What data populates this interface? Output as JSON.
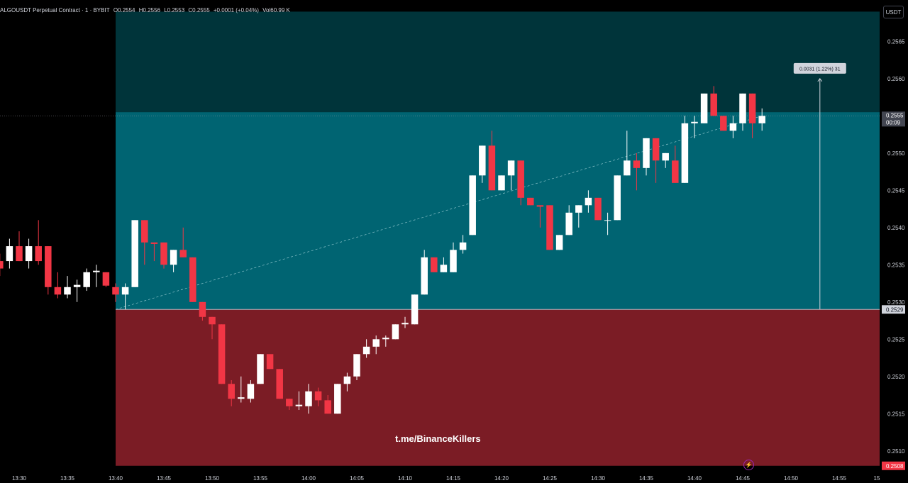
{
  "header": {
    "symbol": "ALGOUSDT Perpetual Contract · 1 · BYBIT",
    "open": "O0.2554",
    "high": "H0.2556",
    "low": "L0.2553",
    "close": "C0.2555",
    "change": "+0.0001 (+0.04%)",
    "volume": "Vol60.99 K"
  },
  "currency": "USDT",
  "watermark": "t.me/BinanceKillers",
  "measure_label": "0.0031 (1.22%) 31",
  "colors": {
    "up": "#ffffff",
    "down": "#f23645",
    "profit_zone": "#006472",
    "profit_zone_upper": "#00343a",
    "stop_zone": "#7b1c25",
    "entry_line": "#b2b5be",
    "text": "#d1d4dc"
  },
  "chart_data": {
    "type": "candlestick",
    "title": "",
    "ylim": [
      0.25075,
      0.25698
    ],
    "y_ticks": [
      "0.2565",
      "0.2560",
      "0.2550",
      "0.2545",
      "0.2540",
      "0.2535",
      "0.2530",
      "0.2525",
      "0.2520",
      "0.2515",
      "0.2510"
    ],
    "x_ticks": [
      "13:30",
      "13:35",
      "13:40",
      "13:45",
      "13:50",
      "13:55",
      "14:00",
      "14:05",
      "14:10",
      "14:15",
      "14:20",
      "14:25",
      "14:30",
      "14:35",
      "14:40",
      "14:45",
      "14:50",
      "14:55",
      "15"
    ],
    "x_range": [
      "13:28",
      "15:00"
    ],
    "price_labels": {
      "current_price": "0.2555",
      "countdown": "00:09",
      "entry": "0.2529",
      "stop": "0.2508"
    },
    "position": {
      "side": "long",
      "entry": 0.2529,
      "target": 0.25555,
      "stop": 0.2508,
      "zone_top": 0.2569,
      "start": "13:40",
      "end": "15:00"
    },
    "measure": {
      "from": 0.2529,
      "to": 0.256,
      "time": "14:53"
    },
    "candles": [
      {
        "t": "13:28",
        "o": 0.25355,
        "h": 0.25365,
        "l": 0.25335,
        "c": 0.25345
      },
      {
        "t": "13:29",
        "o": 0.25355,
        "h": 0.25385,
        "l": 0.25345,
        "c": 0.25375
      },
      {
        "t": "13:30",
        "o": 0.25375,
        "h": 0.25395,
        "l": 0.25355,
        "c": 0.25355
      },
      {
        "t": "13:31",
        "o": 0.25355,
        "h": 0.25385,
        "l": 0.25345,
        "c": 0.25375
      },
      {
        "t": "13:32",
        "o": 0.25375,
        "h": 0.2541,
        "l": 0.2535,
        "c": 0.25355
      },
      {
        "t": "13:33",
        "o": 0.25375,
        "h": 0.25375,
        "l": 0.2531,
        "c": 0.2532
      },
      {
        "t": "13:34",
        "o": 0.2532,
        "h": 0.2534,
        "l": 0.25305,
        "c": 0.2531
      },
      {
        "t": "13:35",
        "o": 0.2531,
        "h": 0.25335,
        "l": 0.25305,
        "c": 0.2532
      },
      {
        "t": "13:36",
        "o": 0.2532,
        "h": 0.2533,
        "l": 0.253,
        "c": 0.25323
      },
      {
        "t": "13:37",
        "o": 0.2532,
        "h": 0.25345,
        "l": 0.25315,
        "c": 0.2534
      },
      {
        "t": "13:38",
        "o": 0.2534,
        "h": 0.2535,
        "l": 0.2532,
        "c": 0.25342
      },
      {
        "t": "13:39",
        "o": 0.2534,
        "h": 0.2534,
        "l": 0.2532,
        "c": 0.25322
      },
      {
        "t": "13:40",
        "o": 0.2532,
        "h": 0.25325,
        "l": 0.253,
        "c": 0.2531
      },
      {
        "t": "13:41",
        "o": 0.2531,
        "h": 0.25325,
        "l": 0.2529,
        "c": 0.2532
      },
      {
        "t": "13:42",
        "o": 0.2532,
        "h": 0.2541,
        "l": 0.2532,
        "c": 0.2541
      },
      {
        "t": "13:43",
        "o": 0.2541,
        "h": 0.2541,
        "l": 0.2535,
        "c": 0.2538
      },
      {
        "t": "13:44",
        "o": 0.2538,
        "h": 0.2538,
        "l": 0.25355,
        "c": 0.25378
      },
      {
        "t": "13:45",
        "o": 0.2538,
        "h": 0.2538,
        "l": 0.25345,
        "c": 0.2535
      },
      {
        "t": "13:46",
        "o": 0.2535,
        "h": 0.2537,
        "l": 0.2534,
        "c": 0.2537
      },
      {
        "t": "13:47",
        "o": 0.2537,
        "h": 0.254,
        "l": 0.2536,
        "c": 0.2536
      },
      {
        "t": "13:48",
        "o": 0.2536,
        "h": 0.2536,
        "l": 0.253,
        "c": 0.253
      },
      {
        "t": "13:49",
        "o": 0.253,
        "h": 0.253,
        "l": 0.25275,
        "c": 0.2528
      },
      {
        "t": "13:50",
        "o": 0.2528,
        "h": 0.2528,
        "l": 0.2525,
        "c": 0.2527
      },
      {
        "t": "13:51",
        "o": 0.2527,
        "h": 0.2527,
        "l": 0.2519,
        "c": 0.2519
      },
      {
        "t": "13:52",
        "o": 0.2519,
        "h": 0.25195,
        "l": 0.2516,
        "c": 0.2517
      },
      {
        "t": "13:53",
        "o": 0.2517,
        "h": 0.252,
        "l": 0.25165,
        "c": 0.25172
      },
      {
        "t": "13:54",
        "o": 0.2517,
        "h": 0.25195,
        "l": 0.25165,
        "c": 0.2519
      },
      {
        "t": "13:55",
        "o": 0.2519,
        "h": 0.2523,
        "l": 0.2519,
        "c": 0.2523
      },
      {
        "t": "13:56",
        "o": 0.2523,
        "h": 0.2523,
        "l": 0.2521,
        "c": 0.2521
      },
      {
        "t": "13:57",
        "o": 0.2521,
        "h": 0.2521,
        "l": 0.2517,
        "c": 0.2517
      },
      {
        "t": "13:58",
        "o": 0.2517,
        "h": 0.2517,
        "l": 0.25155,
        "c": 0.2516
      },
      {
        "t": "13:59",
        "o": 0.2516,
        "h": 0.2518,
        "l": 0.25155,
        "c": 0.25162
      },
      {
        "t": "14:00",
        "o": 0.2516,
        "h": 0.2519,
        "l": 0.2515,
        "c": 0.2518
      },
      {
        "t": "14:01",
        "o": 0.2518,
        "h": 0.25185,
        "l": 0.2516,
        "c": 0.25168
      },
      {
        "t": "14:02",
        "o": 0.25168,
        "h": 0.25175,
        "l": 0.2515,
        "c": 0.2515
      },
      {
        "t": "14:03",
        "o": 0.2515,
        "h": 0.2519,
        "l": 0.2515,
        "c": 0.2519
      },
      {
        "t": "14:04",
        "o": 0.2519,
        "h": 0.25205,
        "l": 0.2518,
        "c": 0.252
      },
      {
        "t": "14:05",
        "o": 0.252,
        "h": 0.2523,
        "l": 0.25195,
        "c": 0.2523
      },
      {
        "t": "14:06",
        "o": 0.2523,
        "h": 0.2525,
        "l": 0.25225,
        "c": 0.2524
      },
      {
        "t": "14:07",
        "o": 0.2524,
        "h": 0.25255,
        "l": 0.2523,
        "c": 0.2525
      },
      {
        "t": "14:08",
        "o": 0.2525,
        "h": 0.25255,
        "l": 0.2524,
        "c": 0.25252
      },
      {
        "t": "14:09",
        "o": 0.2525,
        "h": 0.2527,
        "l": 0.2525,
        "c": 0.2527
      },
      {
        "t": "14:10",
        "o": 0.2527,
        "h": 0.2528,
        "l": 0.25265,
        "c": 0.25272
      },
      {
        "t": "14:11",
        "o": 0.2527,
        "h": 0.2531,
        "l": 0.2527,
        "c": 0.2531
      },
      {
        "t": "14:12",
        "o": 0.2531,
        "h": 0.2537,
        "l": 0.2531,
        "c": 0.2536
      },
      {
        "t": "14:13",
        "o": 0.2536,
        "h": 0.2536,
        "l": 0.2534,
        "c": 0.2534
      },
      {
        "t": "14:14",
        "o": 0.2534,
        "h": 0.2536,
        "l": 0.2534,
        "c": 0.2535
      },
      {
        "t": "14:15",
        "o": 0.2534,
        "h": 0.2538,
        "l": 0.2534,
        "c": 0.2537
      },
      {
        "t": "14:16",
        "o": 0.2537,
        "h": 0.2539,
        "l": 0.25365,
        "c": 0.2538
      },
      {
        "t": "14:17",
        "o": 0.2539,
        "h": 0.2547,
        "l": 0.2539,
        "c": 0.2547
      },
      {
        "t": "14:18",
        "o": 0.2547,
        "h": 0.2551,
        "l": 0.2546,
        "c": 0.2551
      },
      {
        "t": "14:19",
        "o": 0.2551,
        "h": 0.2553,
        "l": 0.2545,
        "c": 0.2545
      },
      {
        "t": "14:20",
        "o": 0.2545,
        "h": 0.2547,
        "l": 0.2545,
        "c": 0.2547
      },
      {
        "t": "14:21",
        "o": 0.2547,
        "h": 0.2549,
        "l": 0.2545,
        "c": 0.2549
      },
      {
        "t": "14:22",
        "o": 0.2549,
        "h": 0.2549,
        "l": 0.2543,
        "c": 0.2544
      },
      {
        "t": "14:23",
        "o": 0.2544,
        "h": 0.2544,
        "l": 0.2543,
        "c": 0.2543
      },
      {
        "t": "14:24",
        "o": 0.2543,
        "h": 0.2543,
        "l": 0.254,
        "c": 0.25428
      },
      {
        "t": "14:25",
        "o": 0.2543,
        "h": 0.2543,
        "l": 0.2537,
        "c": 0.2537
      },
      {
        "t": "14:26",
        "o": 0.2537,
        "h": 0.2539,
        "l": 0.2537,
        "c": 0.2539
      },
      {
        "t": "14:27",
        "o": 0.2539,
        "h": 0.2543,
        "l": 0.2539,
        "c": 0.2542
      },
      {
        "t": "14:28",
        "o": 0.2542,
        "h": 0.2543,
        "l": 0.254,
        "c": 0.2543
      },
      {
        "t": "14:29",
        "o": 0.2543,
        "h": 0.2545,
        "l": 0.2542,
        "c": 0.2544
      },
      {
        "t": "14:30",
        "o": 0.2544,
        "h": 0.2544,
        "l": 0.2541,
        "c": 0.2541
      },
      {
        "t": "14:31",
        "o": 0.2541,
        "h": 0.2542,
        "l": 0.2539,
        "c": 0.2541
      },
      {
        "t": "14:32",
        "o": 0.2541,
        "h": 0.2547,
        "l": 0.2541,
        "c": 0.2547
      },
      {
        "t": "14:33",
        "o": 0.2547,
        "h": 0.2553,
        "l": 0.2547,
        "c": 0.2549
      },
      {
        "t": "14:34",
        "o": 0.2549,
        "h": 0.255,
        "l": 0.2545,
        "c": 0.2548
      },
      {
        "t": "14:35",
        "o": 0.2548,
        "h": 0.2552,
        "l": 0.2547,
        "c": 0.2552
      },
      {
        "t": "14:36",
        "o": 0.2552,
        "h": 0.2552,
        "l": 0.2546,
        "c": 0.2549
      },
      {
        "t": "14:37",
        "o": 0.2549,
        "h": 0.255,
        "l": 0.2548,
        "c": 0.255
      },
      {
        "t": "14:38",
        "o": 0.2549,
        "h": 0.2551,
        "l": 0.2546,
        "c": 0.2546
      },
      {
        "t": "14:39",
        "o": 0.2546,
        "h": 0.2555,
        "l": 0.2546,
        "c": 0.2554
      },
      {
        "t": "14:40",
        "o": 0.2554,
        "h": 0.2555,
        "l": 0.2552,
        "c": 0.25542
      },
      {
        "t": "14:41",
        "o": 0.2554,
        "h": 0.2558,
        "l": 0.2554,
        "c": 0.2558
      },
      {
        "t": "14:42",
        "o": 0.2558,
        "h": 0.2559,
        "l": 0.2555,
        "c": 0.2555
      },
      {
        "t": "14:43",
        "o": 0.2555,
        "h": 0.2555,
        "l": 0.2553,
        "c": 0.2553
      },
      {
        "t": "14:44",
        "o": 0.2553,
        "h": 0.2555,
        "l": 0.2552,
        "c": 0.2554
      },
      {
        "t": "14:45",
        "o": 0.2554,
        "h": 0.2558,
        "l": 0.2553,
        "c": 0.2558
      },
      {
        "t": "14:46",
        "o": 0.2558,
        "h": 0.2558,
        "l": 0.2552,
        "c": 0.2554
      },
      {
        "t": "14:47",
        "o": 0.2554,
        "h": 0.2556,
        "l": 0.2553,
        "c": 0.2555
      }
    ]
  }
}
